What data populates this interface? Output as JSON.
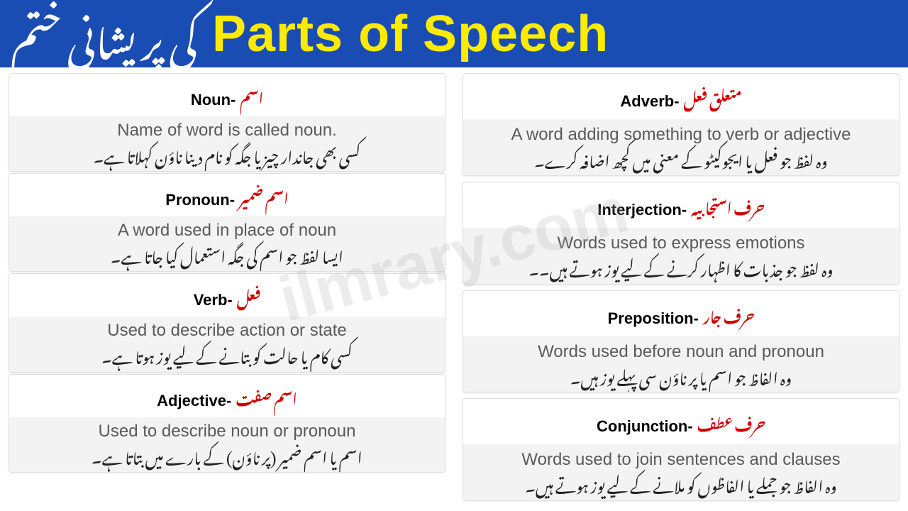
{
  "header": {
    "main_title": "Parts of Speech",
    "urdu_suffix": "کی پریشانی ختم",
    "bg_color": "#1a4db3",
    "title_color": "#ffeb00",
    "urdu_color": "#ffffff"
  },
  "watermark": "ilmrary.com",
  "left_column": [
    {
      "title_en": "Noun-",
      "title_ur": "اسم",
      "def_en": "Name of word is called noun.",
      "def_ur": "کسی بھی جاندار چیز یا جگہ کو نام دینا ناؤن کہلاتا ہے۔"
    },
    {
      "title_en": "Pronoun-",
      "title_ur": "اسم ضمیر",
      "def_en": "A word used in place of noun",
      "def_ur": "ایسا لفظ جو اسم کی جگہ استعمال کیا جاتا ہے۔"
    },
    {
      "title_en": "Verb-",
      "title_ur": "فعل",
      "def_en": "Used to describe action or state",
      "def_ur": "کسی کام یا حالت کو بتانے کے لیے یوز ہوتا ہے۔"
    },
    {
      "title_en": "Adjective-",
      "title_ur": "اسم صفت",
      "def_en": "Used to describe noun or pronoun",
      "def_ur": "اسم یا اسم ضمیر (پر ناؤن) کے بارے میں بتاتا ہے۔"
    }
  ],
  "right_column": [
    {
      "title_en": "Adverb-",
      "title_ur": "متعلق فعل",
      "def_en": "A word adding something to verb or adjective",
      "def_ur": "وہ لفظ جو فعل یا ایجوکیٹو کے معنی میں کچھ اضافہ کرے۔"
    },
    {
      "title_en": "Interjection-",
      "title_ur": "حرف استجابیہ",
      "def_en": "Words used to express emotions",
      "def_ur": "وہ لفظ جو جذبات کا اظہار کرنے کے لیے یوز ہوتے ہیں۔۔"
    },
    {
      "title_en": "Preposition-",
      "title_ur": "حرف جار",
      "def_en": "Words used before noun and pronoun",
      "def_ur": "وہ الفاظ جو اسم یا پر ناؤن سی پہلے یوز ہیں۔"
    },
    {
      "title_en": "Conjunction-",
      "title_ur": "حرف عطف",
      "def_en": "Words used to join sentences and clauses",
      "def_ur": "وہ الفاظ جو جملے یا الفاظوں کو ملانے کے لیے یوز ہوتے ہیں۔"
    }
  ],
  "colors": {
    "urdu_title": "#d40000",
    "card_border": "#e0e0e0",
    "card_body_bg": "#f3f3f3",
    "def_en_color": "#5a5a5a"
  }
}
